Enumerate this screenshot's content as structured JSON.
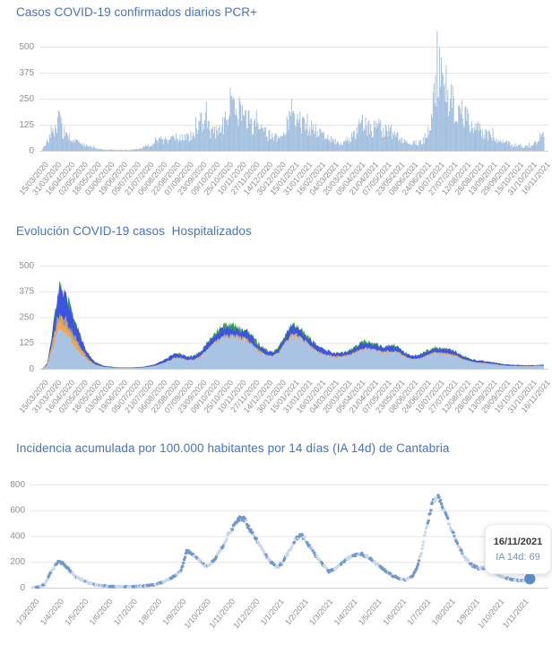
{
  "tooltip": {
    "date": "16/11/2021",
    "value": "IA 14d: 69"
  },
  "chart_data": [
    {
      "type": "bar",
      "title": "Casos COVID-19 confirmados diarios PCR+",
      "ylabel": "",
      "xlabel": "",
      "ylim": [
        0,
        500
      ],
      "y_ticks": [
        500,
        375,
        250,
        125,
        0
      ],
      "grid": true,
      "bar_color": "#a3bfdf",
      "grid_color": "#e5e5e5",
      "axis_color": "#cfcfcf",
      "tick_label_color": "#8f8f8f",
      "start_date": "15/03/2020",
      "end_date": "16/11/2021",
      "domain_days": 611,
      "x_tick_labels": [
        "15/03/2020",
        "31/03/2020",
        "16/04/2020",
        "02/05/2020",
        "18/05/2020",
        "03/06/2020",
        "19/06/2020",
        "05/07/2020",
        "21/07/2020",
        "06/08/2020",
        "22/08/2020",
        "07/09/2020",
        "23/09/2020",
        "09/10/2020",
        "25/10/2020",
        "10/11/2020",
        "27/11/2020",
        "14/12/2020",
        "30/12/2020",
        "15/01/2021",
        "31/01/2021",
        "16/02/2021",
        "04/03/2021",
        "20/03/2021",
        "05/04/2021",
        "21/04/2021",
        "07/05/2021",
        "23/05/2021",
        "08/06/2021",
        "24/06/2021",
        "10/07/2021",
        "27/07/2021",
        "12/08/2021",
        "28/08/2021",
        "13/09/2021",
        "29/09/2021",
        "15/10/2021",
        "31/10/2021",
        "16/11/2021"
      ],
      "anchor_days": [
        0,
        5,
        12,
        20,
        24,
        30,
        38,
        45,
        55,
        65,
        75,
        90,
        105,
        115,
        125,
        135,
        145,
        155,
        165,
        175,
        185,
        197,
        205,
        215,
        225,
        232,
        238,
        245,
        252,
        260,
        270,
        280,
        290,
        296,
        302,
        310,
        320,
        330,
        340,
        352,
        362,
        372,
        382,
        390,
        400,
        410,
        420,
        430,
        440,
        450,
        460,
        465,
        472,
        478,
        483,
        490,
        497,
        505,
        515,
        525,
        535,
        545,
        555,
        565,
        575,
        585,
        592,
        598,
        604,
        611
      ],
      "anchor_values": [
        2,
        45,
        80,
        180,
        110,
        75,
        55,
        40,
        25,
        12,
        6,
        4,
        4,
        8,
        18,
        35,
        55,
        50,
        70,
        65,
        90,
        170,
        100,
        90,
        160,
        300,
        220,
        180,
        150,
        120,
        90,
        75,
        60,
        120,
        215,
        170,
        130,
        110,
        80,
        55,
        45,
        60,
        90,
        150,
        110,
        120,
        100,
        90,
        60,
        45,
        40,
        60,
        120,
        300,
        430,
        340,
        260,
        220,
        170,
        130,
        100,
        80,
        60,
        40,
        28,
        20,
        22,
        30,
        55,
        95
      ]
    },
    {
      "type": "area",
      "title": "Evolución COVID-19 casos  Hospitalizados",
      "ylabel": "",
      "xlabel": "",
      "ylim": [
        0,
        500
      ],
      "y_ticks": [
        500,
        375,
        250,
        125,
        0
      ],
      "grid": true,
      "grid_color": "#e5e5e5",
      "axis_color": "#cfcfcf",
      "tick_label_color": "#8f8f8f",
      "start_date": "15/03/2020",
      "end_date": "16/11/2021",
      "domain_days": 611,
      "x_tick_labels": [
        "15/03/2020",
        "31/03/2020",
        "16/04/2020",
        "02/05/2020",
        "18/05/2020",
        "03/06/2020",
        "19/06/2020",
        "05/07/2020",
        "21/07/2020",
        "06/08/2020",
        "22/08/2020",
        "07/09/2020",
        "23/09/2020",
        "09/10/2020",
        "25/10/2020",
        "10/11/2020",
        "27/11/2020",
        "14/12/2020",
        "30/12/2020",
        "15/01/2021",
        "31/01/2021",
        "16/02/2021",
        "04/03/2021",
        "20/03/2021",
        "05/04/2021",
        "21/04/2021",
        "07/05/2021",
        "23/05/2021",
        "08/06/2021",
        "24/06/2021",
        "10/07/2021",
        "27/07/2021",
        "12/08/2021",
        "28/08/2021",
        "13/09/2021",
        "29/09/2021",
        "15/10/2021",
        "31/10/2021",
        "16/11/2021"
      ],
      "anchor_days": [
        0,
        6,
        12,
        18,
        22,
        27,
        33,
        40,
        48,
        56,
        64,
        75,
        90,
        110,
        125,
        138,
        150,
        160,
        168,
        176,
        185,
        195,
        205,
        215,
        225,
        232,
        240,
        248,
        256,
        265,
        273,
        280,
        288,
        296,
        304,
        310,
        318,
        326,
        334,
        342,
        352,
        362,
        372,
        382,
        392,
        400,
        408,
        416,
        424,
        432,
        440,
        450,
        460,
        470,
        478,
        486,
        494,
        502,
        512,
        522,
        532,
        542,
        552,
        562,
        572,
        582,
        592,
        602,
        611
      ],
      "series": [
        {
          "name": "green-layer",
          "color": "#3da04a",
          "values": [
            0,
            26,
            165,
            340,
            408,
            372,
            310,
            232,
            145,
            73,
            34,
            15,
            7,
            6,
            10,
            22,
            46,
            69,
            73,
            59,
            62,
            93,
            145,
            192,
            215,
            207,
            200,
            192,
            160,
            115,
            90,
            84,
            104,
            162,
            212,
            209,
            178,
            148,
            115,
            94,
            82,
            75,
            85,
            108,
            134,
            128,
            118,
            110,
            114,
            111,
            82,
            63,
            67,
            91,
            104,
            100,
            97,
            86,
            62,
            46,
            41,
            35,
            29,
            22,
            19,
            18,
            17,
            18,
            19
          ]
        },
        {
          "name": "blue-layer",
          "color": "#3c54df",
          "values": [
            0,
            25,
            160,
            330,
            398,
            360,
            300,
            225,
            140,
            70,
            32,
            14,
            7,
            6,
            10,
            22,
            45,
            68,
            72,
            58,
            60,
            90,
            140,
            185,
            205,
            195,
            188,
            180,
            150,
            105,
            82,
            78,
            100,
            158,
            208,
            205,
            175,
            145,
            112,
            92,
            80,
            73,
            82,
            102,
            128,
            122,
            112,
            105,
            110,
            108,
            80,
            62,
            66,
            88,
            100,
            96,
            94,
            84,
            60,
            45,
            40,
            34,
            28,
            22,
            19,
            18,
            17,
            18,
            19
          ]
        },
        {
          "name": "gray-layer",
          "color": "#a59d94",
          "values": [
            0,
            20,
            125,
            230,
            272,
            250,
            210,
            155,
            95,
            50,
            23,
            10,
            5,
            4,
            7,
            15,
            32,
            51,
            55,
            42,
            44,
            68,
            110,
            150,
            165,
            160,
            153,
            145,
            120,
            84,
            65,
            61,
            78,
            125,
            165,
            163,
            140,
            114,
            88,
            73,
            63,
            58,
            65,
            82,
            100,
            97,
            89,
            82,
            86,
            84,
            63,
            47,
            50,
            68,
            78,
            75,
            73,
            65,
            47,
            35,
            30,
            26,
            22,
            16,
            14,
            13,
            13,
            14,
            15
          ]
        },
        {
          "name": "orange-layer",
          "color": "#f0a64f",
          "values": [
            0,
            18,
            110,
            205,
            240,
            225,
            185,
            135,
            85,
            45,
            21,
            9,
            5,
            4,
            7,
            15,
            31,
            50,
            54,
            41,
            43,
            67,
            108,
            148,
            163,
            158,
            151,
            143,
            118,
            82,
            64,
            60,
            77,
            123,
            163,
            161,
            138,
            112,
            87,
            72,
            62,
            57,
            64,
            80,
            98,
            95,
            87,
            80,
            85,
            82,
            62,
            46,
            49,
            67,
            77,
            74,
            72,
            64,
            46,
            34,
            29,
            25,
            21,
            16,
            14,
            13,
            13,
            14,
            15
          ]
        },
        {
          "name": "light-layer",
          "color": "#a9c4e3",
          "values": [
            0,
            15,
            90,
            165,
            195,
            180,
            150,
            110,
            70,
            38,
            18,
            8,
            4,
            3,
            6,
            14,
            30,
            48,
            52,
            40,
            42,
            65,
            105,
            145,
            160,
            155,
            148,
            140,
            115,
            80,
            62,
            58,
            75,
            120,
            160,
            158,
            135,
            110,
            85,
            70,
            60,
            55,
            62,
            78,
            95,
            92,
            85,
            78,
            82,
            80,
            60,
            45,
            48,
            65,
            75,
            72,
            70,
            62,
            45,
            33,
            28,
            24,
            20,
            15,
            13,
            12,
            12,
            13,
            14
          ]
        }
      ]
    },
    {
      "type": "scatter",
      "title": "Incidencia acumulada por 100.000 habitantes por 14 días (IA 14d) de Cantabria",
      "ylabel": "",
      "xlabel": "",
      "ylim": [
        0,
        800
      ],
      "y_ticks": [
        800,
        600,
        400,
        200,
        0
      ],
      "grid": true,
      "grid_color": "#e5e5e5",
      "axis_color": "#cfcfcf",
      "tick_label_color": "#8f8f8f",
      "dot_colors": [
        "#c9d8ec",
        "#7199cd"
      ],
      "final_dot_color": "#5c8ec9",
      "start_date": "1/3/2020",
      "domain_days": 618,
      "x_tick_labels": [
        "1/3/2020",
        "1/4/2020",
        "1/5/2020",
        "1/6/2020",
        "1/7/2020",
        "1/8/2020",
        "1/9/2020",
        "1/10/2020",
        "1/11/2020",
        "1/12/2020",
        "1/1/2021",
        "1/2/2021",
        "1/3/2021",
        "1/4/2021",
        "1/5/2021",
        "1/6/2021",
        "1/7/2021",
        "1/8/2021",
        "1/9/2021",
        "1/10/2021",
        "1/11/2021"
      ],
      "anchor_days": [
        0,
        8,
        15,
        22,
        31,
        38,
        45,
        52,
        61,
        70,
        80,
        92,
        105,
        122,
        135,
        145,
        153,
        162,
        172,
        184,
        191,
        198,
        205,
        215,
        222,
        230,
        238,
        246,
        252,
        258,
        264,
        270,
        278,
        286,
        294,
        304,
        312,
        320,
        326,
        332,
        338,
        344,
        352,
        360,
        368,
        376,
        384,
        392,
        400,
        408,
        416,
        424,
        432,
        440,
        448,
        456,
        464,
        472,
        478,
        484,
        490,
        496,
        502,
        508,
        514,
        520,
        526,
        532,
        538,
        546,
        554,
        562,
        570,
        578,
        586,
        594,
        602,
        610,
        618
      ],
      "anchor_values": [
        2,
        5,
        30,
        120,
        205,
        185,
        140,
        90,
        60,
        35,
        20,
        12,
        8,
        8,
        12,
        18,
        25,
        45,
        75,
        130,
        285,
        260,
        220,
        165,
        190,
        260,
        350,
        440,
        510,
        550,
        520,
        450,
        370,
        290,
        210,
        155,
        210,
        300,
        370,
        410,
        380,
        320,
        250,
        180,
        125,
        150,
        190,
        230,
        255,
        265,
        240,
        200,
        160,
        120,
        90,
        70,
        62,
        90,
        160,
        300,
        480,
        640,
        710,
        660,
        560,
        460,
        370,
        290,
        225,
        175,
        150,
        155,
        130,
        100,
        80,
        65,
        58,
        55,
        69
      ],
      "final_point": {
        "date": "16/11/2021",
        "value": 69
      }
    }
  ]
}
